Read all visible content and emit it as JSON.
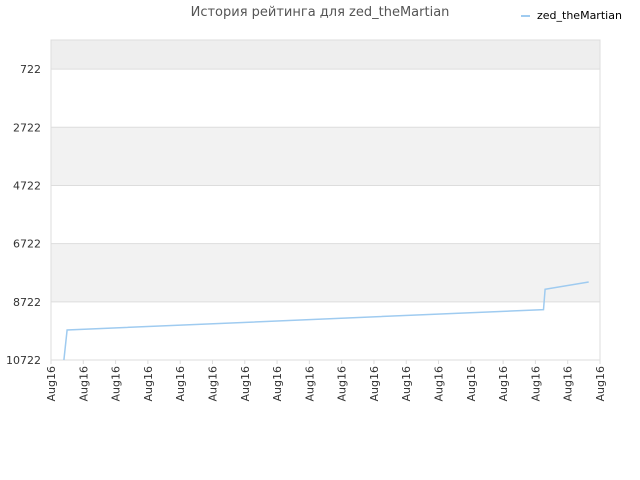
{
  "chart_data": {
    "type": "line",
    "title": "История рейтинга для zed_theMartian",
    "xlabel": "",
    "ylabel": "",
    "y_inverted": true,
    "ylim": [
      -278,
      10722
    ],
    "yticks": [
      722,
      2722,
      4722,
      6722,
      8722,
      10722
    ],
    "x_tick_labels": [
      "Aug16",
      "Aug16",
      "Aug16",
      "Aug16",
      "Aug16",
      "Aug16",
      "Aug16",
      "Aug16",
      "Aug16",
      "Aug16",
      "Aug16",
      "Aug16",
      "Aug16",
      "Aug16",
      "Aug16",
      "Aug16",
      "Aug16",
      "Aug16"
    ],
    "grid": true,
    "legend_position": "top-right",
    "series": [
      {
        "name": "zed_theMartian",
        "color": "#9fcbf0",
        "points": [
          {
            "x": 0.4,
            "y": 10722
          },
          {
            "x": 0.5,
            "y": 9690
          },
          {
            "x": 15.25,
            "y": 8990
          },
          {
            "x": 15.3,
            "y": 8290
          },
          {
            "x": 16.65,
            "y": 8040
          }
        ]
      }
    ]
  }
}
